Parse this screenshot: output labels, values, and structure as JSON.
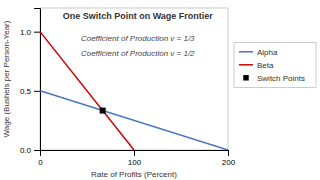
{
  "chart_data": {
    "type": "line",
    "title": "One Switch Point on Wage Frontier",
    "subtitle": [
      "Coefficient of Production v = 1/3",
      "Coefficient of Production v = 1/2"
    ],
    "x_label": "Rate of Profits (Percent)",
    "y_label": "Wage (Bushels per Person-Year)",
    "xlim": [
      0,
      200
    ],
    "ylim": [
      0,
      1.2
    ],
    "xticks": [
      0,
      100,
      200
    ],
    "yticks": [
      {
        "value": 0.0,
        "label": "0.0"
      },
      0.5,
      {
        "value": 1.0,
        "label": "1.0"
      }
    ],
    "grid": false,
    "legend": "right",
    "series": [
      {
        "name": "Alpha",
        "type": "line",
        "color": "#4472C4",
        "x": [
          0,
          200
        ],
        "values": [
          0.5,
          0.0
        ]
      },
      {
        "name": "Beta",
        "type": "line",
        "color": "#CC0000",
        "x": [
          0,
          100
        ],
        "values": [
          1.0,
          0.0
        ]
      },
      {
        "name": "Switch Points",
        "type": "scatter",
        "marker": "square",
        "color": "#000000",
        "x": [
          66.67
        ],
        "values": [
          0.3333
        ]
      }
    ]
  }
}
